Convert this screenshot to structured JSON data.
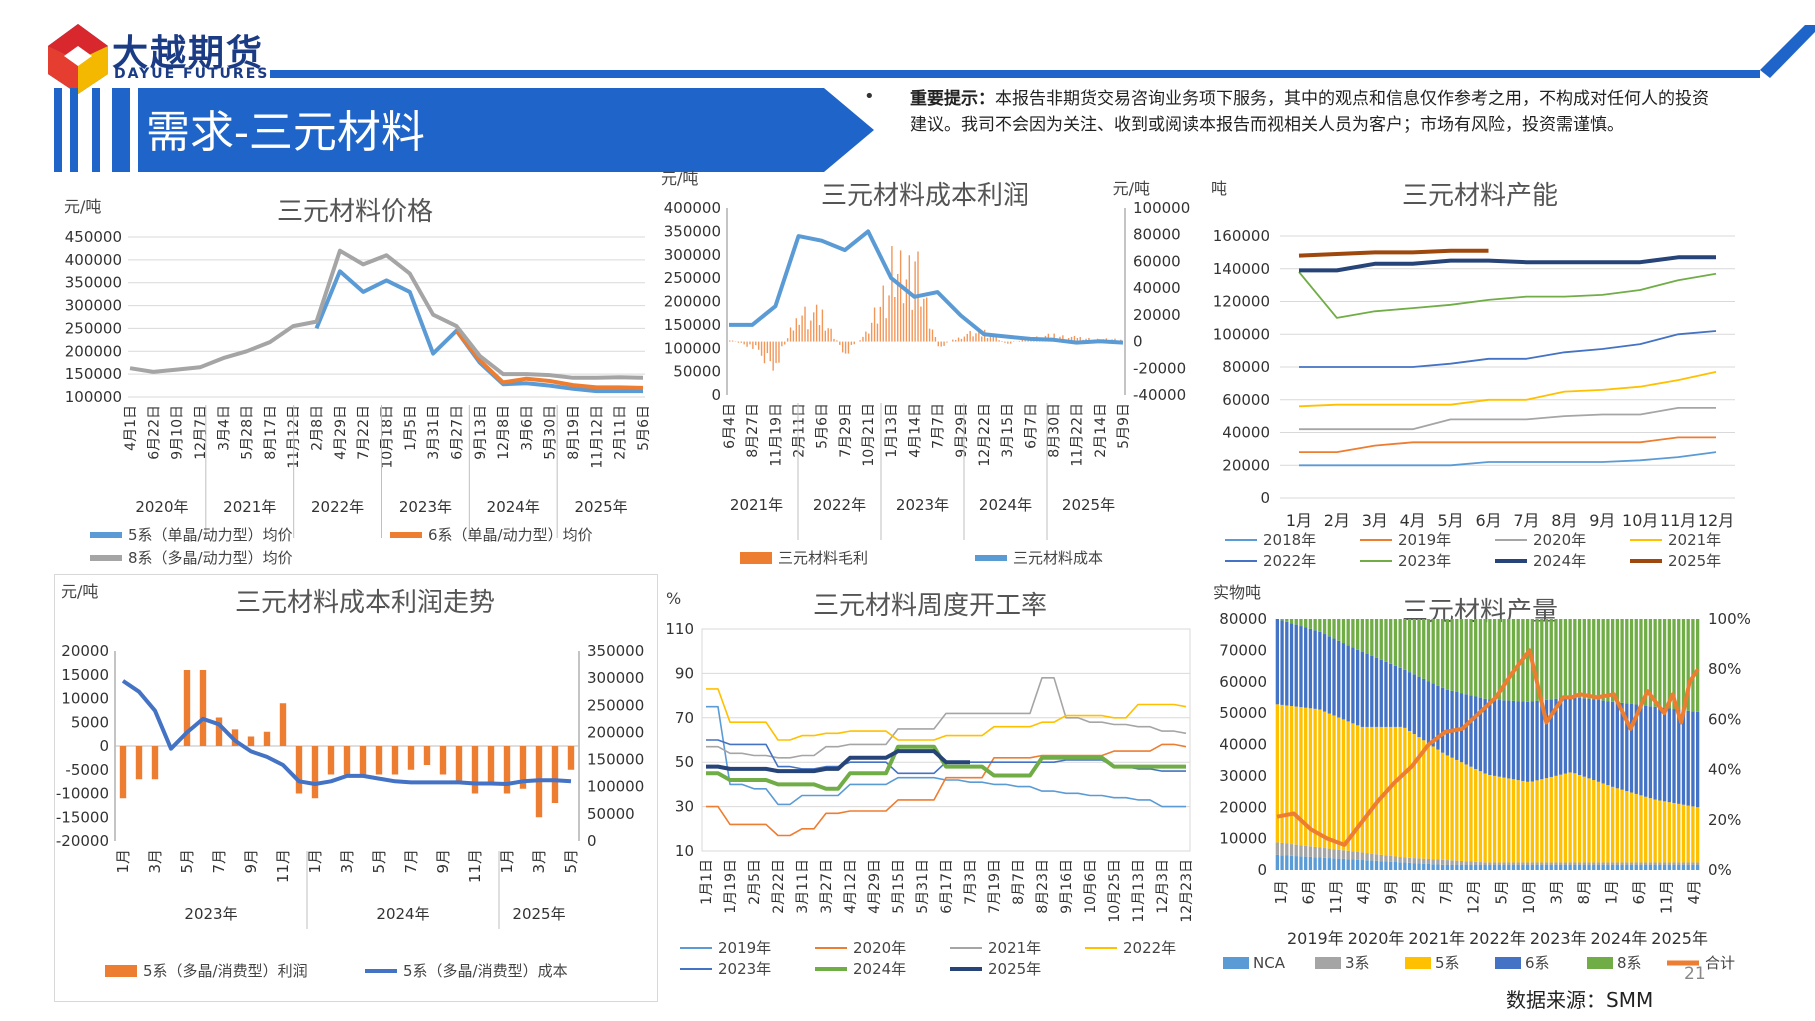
{
  "brand": {
    "name_cn": "大越期货",
    "name_en": "DAYUE FUTURES"
  },
  "page": {
    "title": "需求-三元材料",
    "page_number": "21",
    "source": "数据来源：SMM",
    "notice_label": "重要提示：",
    "notice_text": "本报告非期货交易咨询业务项下服务，其中的观点和信息仅作参考之用，不构成对任何人的投资建议。我司不会因为关注、收到或阅读本报告而视相关人员为客户；市场有风险，投资需谨慎。"
  },
  "colors": {
    "brand_blue": "#1f64c8",
    "navy": "#1b3c85",
    "orange": "#ed7d31",
    "blue": "#5b9bd5",
    "gray": "#a5a5a5",
    "yellow": "#ffc000",
    "green": "#70ad47",
    "darkblue": "#264478",
    "dark_orange": "#9e480e"
  },
  "chart_data": [
    {
      "id": "price",
      "type": "line",
      "title": "三元材料价格",
      "ylabel": "元/吨",
      "ylim": [
        100000,
        450000
      ],
      "yticks": [
        "450000",
        "400000",
        "350000",
        "300000",
        "250000",
        "200000",
        "150000",
        "100000"
      ],
      "xticks": [
        "4月1日",
        "6月22日",
        "9月10日",
        "12月7日",
        "3月4日",
        "5月28日",
        "8月17日",
        "11月12日",
        "2月8日",
        "4月29日",
        "7月22日",
        "10月18日",
        "1月5日",
        "3月31日",
        "6月27日",
        "9月13日",
        "12月8日",
        "3月6日",
        "5月30日",
        "8月19日",
        "11月12日",
        "2月11日",
        "5月6日"
      ],
      "xgroups": [
        "2020年",
        "2021年",
        "2022年",
        "2023年",
        "2024年",
        "2025年"
      ],
      "series": [
        {
          "name": "5系（单晶/动力型）均价",
          "color": "#5b9bd5",
          "values": [
            null,
            null,
            null,
            null,
            null,
            null,
            null,
            null,
            250000,
            375000,
            330000,
            355000,
            330000,
            195000,
            245000,
            175000,
            128000,
            130000,
            125000,
            118000,
            113000,
            113000,
            113000
          ]
        },
        {
          "name": "6系（单晶/动力型）均价",
          "color": "#ed7d31",
          "values": [
            null,
            null,
            null,
            null,
            null,
            null,
            null,
            null,
            null,
            null,
            null,
            null,
            null,
            null,
            245000,
            180000,
            132000,
            140000,
            135000,
            126000,
            121000,
            121000,
            120000
          ]
        },
        {
          "name": "8系（多晶/动力型）均价",
          "color": "#a5a5a5",
          "values": [
            163000,
            155000,
            160000,
            165000,
            185000,
            200000,
            220000,
            255000,
            265000,
            420000,
            390000,
            410000,
            370000,
            280000,
            255000,
            190000,
            150000,
            150000,
            148000,
            142000,
            142000,
            143000,
            142000
          ]
        }
      ]
    },
    {
      "id": "cost-profit",
      "type": "bar+line",
      "title": "三元材料成本利润",
      "ylabel_left": "元/吨",
      "ylabel_right": "元/吨",
      "ylim_left": [
        0,
        400000
      ],
      "ylim_right": [
        -40000,
        100000
      ],
      "yticks_left": [
        "400000",
        "350000",
        "300000",
        "250000",
        "200000",
        "150000",
        "100000",
        "50000",
        "0"
      ],
      "yticks_right": [
        "100000",
        "80000",
        "60000",
        "40000",
        "20000",
        "0",
        "-20000",
        "-40000"
      ],
      "xticks": [
        "6月4日",
        "8月27日",
        "11月19日",
        "2月11日",
        "5月6日",
        "7月29日",
        "10月21日",
        "1月13日",
        "4月14日",
        "7月7日",
        "9月29日",
        "12月22日",
        "3月15日",
        "6月7日",
        "8月30日",
        "11月22日",
        "2月14日",
        "5月9日"
      ],
      "xgroups": [
        "2021年",
        "2022年",
        "2023年",
        "2024年",
        "2025年"
      ],
      "series": [
        {
          "name": "三元材料毛利",
          "color": "#ed7d31",
          "values": [
            2000,
            -5000,
            -20000,
            25000,
            20000,
            -10000,
            10000,
            55000,
            60000,
            -5000,
            5000,
            8000,
            -2000,
            3000,
            5000,
            3000,
            2000,
            2000
          ]
        },
        {
          "name": "三元材料成本",
          "color": "#5b9bd5",
          "values": [
            150000,
            150000,
            190000,
            340000,
            330000,
            310000,
            350000,
            250000,
            210000,
            220000,
            170000,
            130000,
            125000,
            120000,
            118000,
            112000,
            115000,
            112000
          ]
        }
      ]
    },
    {
      "id": "capacity",
      "type": "line",
      "title": "三元材料产能",
      "ylabel": "吨",
      "ylim": [
        0,
        160000
      ],
      "yticks": [
        "160000",
        "140000",
        "120000",
        "100000",
        "80000",
        "60000",
        "40000",
        "20000",
        "0"
      ],
      "xticks": [
        "1月",
        "2月",
        "3月",
        "4月",
        "5月",
        "6月",
        "7月",
        "8月",
        "9月",
        "10月",
        "11月",
        "12月"
      ],
      "series": [
        {
          "name": "2018年",
          "color": "#5b9bd5",
          "values": [
            20000,
            20000,
            20000,
            20000,
            20000,
            22000,
            22000,
            22000,
            22000,
            23000,
            25000,
            28000
          ]
        },
        {
          "name": "2019年",
          "color": "#ed7d31",
          "values": [
            28000,
            28000,
            32000,
            34000,
            34000,
            34000,
            34000,
            34000,
            34000,
            34000,
            37000,
            37000
          ]
        },
        {
          "name": "2020年",
          "color": "#a5a5a5",
          "values": [
            42000,
            42000,
            42000,
            42000,
            48000,
            48000,
            48000,
            50000,
            51000,
            51000,
            55000,
            55000
          ]
        },
        {
          "name": "2021年",
          "color": "#ffc000",
          "values": [
            56000,
            57000,
            57000,
            57000,
            57000,
            60000,
            60000,
            65000,
            66000,
            68000,
            72000,
            77000
          ]
        },
        {
          "name": "2022年",
          "color": "#4472c4",
          "values": [
            80000,
            80000,
            80000,
            80000,
            82000,
            85000,
            85000,
            89000,
            91000,
            94000,
            100000,
            102000
          ]
        },
        {
          "name": "2023年",
          "color": "#70ad47",
          "values": [
            138000,
            110000,
            114000,
            116000,
            118000,
            121000,
            123000,
            123000,
            124000,
            127000,
            133000,
            137000
          ]
        },
        {
          "name": "2024年",
          "color": "#264478",
          "values": [
            139000,
            139000,
            143000,
            143000,
            145000,
            145000,
            144000,
            144000,
            144000,
            144000,
            147000,
            147000
          ]
        },
        {
          "name": "2025年",
          "color": "#9e480e",
          "values": [
            148000,
            149000,
            150000,
            150000,
            151000,
            151000,
            null,
            null,
            null,
            null,
            null,
            null
          ]
        }
      ]
    },
    {
      "id": "trend",
      "type": "bar+line",
      "title": "三元材料成本利润走势",
      "ylabel": "元/吨",
      "ylim_left": [
        -20000,
        20000
      ],
      "ylim_right": [
        0,
        350000
      ],
      "yticks_left": [
        "20000",
        "15000",
        "10000",
        "5000",
        "0",
        "-5000",
        "-10000",
        "-15000",
        "-20000"
      ],
      "yticks_right": [
        "350000",
        "300000",
        "250000",
        "200000",
        "150000",
        "100000",
        "50000",
        "0"
      ],
      "xticks": [
        "1月",
        "3月",
        "5月",
        "7月",
        "9月",
        "11月",
        "1月",
        "3月",
        "5月",
        "7月",
        "9月",
        "11月",
        "1月",
        "3月",
        "5月"
      ],
      "xgroups": [
        "2023年",
        "2024年",
        "2025年"
      ],
      "series": [
        {
          "name": "5系（多晶/消费型）利润",
          "color": "#ed7d31",
          "values": [
            -11000,
            -7000,
            -7000,
            null,
            16000,
            16000,
            6000,
            3500,
            2000,
            3000,
            9000,
            -10000,
            -11000,
            -6000,
            -6000,
            -6000,
            -6000,
            -6000,
            -5000,
            -4000,
            -6000,
            -8000,
            -10000,
            -8000,
            -10000,
            -9000,
            -15000,
            -12000,
            -5000
          ]
        },
        {
          "name": "5系（多晶/消费型）成本",
          "color": "#4472c4",
          "values": [
            295000,
            275000,
            240000,
            170000,
            200000,
            225000,
            215000,
            185000,
            165000,
            155000,
            140000,
            110000,
            105000,
            110000,
            120000,
            120000,
            115000,
            110000,
            108000,
            108000,
            108000,
            108000,
            106000,
            106000,
            105000,
            110000,
            112000,
            112000,
            110000
          ]
        }
      ]
    },
    {
      "id": "weekly-rate",
      "type": "line",
      "title": "三元材料周度开工率",
      "ylabel": "%",
      "ylim": [
        10,
        110
      ],
      "yticks": [
        "110",
        "90",
        "70",
        "50",
        "30",
        "10"
      ],
      "xticks": [
        "1月1日",
        "1月19日",
        "2月5日",
        "2月22日",
        "3月11日",
        "3月27日",
        "4月12日",
        "4月29日",
        "5月15日",
        "5月31日",
        "6月17日",
        "7月3日",
        "7月19日",
        "8月7日",
        "8月23日",
        "9月16日",
        "10月6日",
        "10月25日",
        "11月13日",
        "12月3日",
        "12月23日"
      ],
      "series": [
        {
          "name": "2019年",
          "color": "#5b9bd5",
          "values": [
            75,
            40,
            38,
            31,
            35,
            35,
            40,
            40,
            43,
            43,
            42,
            41,
            40,
            39,
            37,
            36,
            35,
            34,
            33,
            30,
            30
          ]
        },
        {
          "name": "2020年",
          "color": "#ed7d31",
          "values": [
            30,
            22,
            22,
            17,
            20,
            27,
            28,
            28,
            33,
            33,
            43,
            43,
            52,
            52,
            53,
            53,
            53,
            55,
            55,
            58,
            57
          ]
        },
        {
          "name": "2021年",
          "color": "#a5a5a5",
          "values": [
            57,
            54,
            53,
            52,
            53,
            57,
            58,
            58,
            65,
            65,
            72,
            72,
            72,
            72,
            88,
            70,
            68,
            67,
            66,
            64,
            63
          ]
        },
        {
          "name": "2022年",
          "color": "#ffc000",
          "values": [
            83,
            68,
            68,
            60,
            62,
            63,
            64,
            64,
            60,
            60,
            62,
            62,
            66,
            66,
            68,
            71,
            71,
            70,
            76,
            76,
            75
          ]
        },
        {
          "name": "2023年",
          "color": "#4472c4",
          "values": [
            60,
            58,
            58,
            48,
            47,
            48,
            50,
            50,
            45,
            45,
            50,
            50,
            50,
            50,
            50,
            51,
            51,
            48,
            47,
            46,
            46
          ]
        },
        {
          "name": "2024年",
          "color": "#70ad47",
          "values": [
            45,
            42,
            42,
            40,
            40,
            38,
            45,
            45,
            57,
            57,
            48,
            48,
            44,
            44,
            52,
            52,
            52,
            48,
            48,
            48,
            48
          ]
        },
        {
          "name": "2025年",
          "color": "#264478",
          "values": [
            48,
            47,
            47,
            46,
            46,
            47,
            52,
            52,
            55,
            55,
            50,
            50,
            null,
            null,
            null,
            null,
            null,
            null,
            null,
            null,
            null
          ]
        }
      ]
    },
    {
      "id": "output",
      "type": "stacked-bar+line",
      "title": "三元材料产量",
      "ylabel": "实物吨",
      "ylim_left": [
        0,
        80000
      ],
      "ylim_right": [
        0,
        1
      ],
      "yticks_left": [
        "80000",
        "70000",
        "60000",
        "50000",
        "40000",
        "30000",
        "20000",
        "10000",
        "0"
      ],
      "yticks_right": [
        "100%",
        "80%",
        "60%",
        "40%",
        "20%",
        "0%"
      ],
      "xticks": [
        "1月",
        "6月",
        "11月",
        "4月",
        "9月",
        "2月",
        "7月",
        "12月",
        "5月",
        "10月",
        "3月",
        "8月",
        "1月",
        "6月",
        "11月",
        "4月"
      ],
      "xgroups": [
        "2019年",
        "2020年",
        "2021年",
        "2022年",
        "2023年",
        "2024年",
        "2025年"
      ],
      "shares": {
        "x": [
          0,
          10,
          20,
          30,
          40,
          50,
          60,
          70,
          80,
          90,
          100
        ],
        "NCA": [
          0.06,
          0.05,
          0.04,
          0.03,
          0.02,
          0.02,
          0.02,
          0.02,
          0.02,
          0.02,
          0.02
        ],
        "3系": [
          0.05,
          0.04,
          0.03,
          0.02,
          0.02,
          0.01,
          0.01,
          0.01,
          0.01,
          0.01,
          0.01
        ],
        "5系": [
          0.55,
          0.55,
          0.5,
          0.52,
          0.42,
          0.35,
          0.32,
          0.36,
          0.3,
          0.25,
          0.22
        ],
        "6系": [
          0.34,
          0.31,
          0.3,
          0.23,
          0.26,
          0.3,
          0.32,
          0.3,
          0.34,
          0.37,
          0.38
        ],
        "8系": [
          0.0,
          0.05,
          0.13,
          0.2,
          0.28,
          0.32,
          0.33,
          0.31,
          0.33,
          0.35,
          0.37
        ]
      },
      "series": [
        {
          "name": "NCA",
          "color": "#5b9bd5"
        },
        {
          "name": "3系",
          "color": "#a5a5a5"
        },
        {
          "name": "5系",
          "color": "#ffc000"
        },
        {
          "name": "6系",
          "color": "#4472c4"
        },
        {
          "name": "8系",
          "color": "#70ad47"
        },
        {
          "name": "合计",
          "color": "#ed7d31",
          "x": [
            0,
            4,
            8,
            12,
            16,
            20,
            24,
            28,
            32,
            36,
            40,
            44,
            48,
            52,
            56,
            60,
            64,
            68,
            70,
            72,
            76,
            80,
            84,
            88,
            92,
            94,
            96,
            98,
            100
          ],
          "values": [
            17000,
            18000,
            13000,
            10000,
            8000,
            15000,
            22000,
            28000,
            33000,
            40000,
            44000,
            45000,
            50000,
            55000,
            63000,
            70000,
            47000,
            55000,
            55000,
            56000,
            55000,
            56000,
            45000,
            57000,
            50000,
            56000,
            47000,
            60000,
            64000
          ]
        }
      ]
    }
  ]
}
